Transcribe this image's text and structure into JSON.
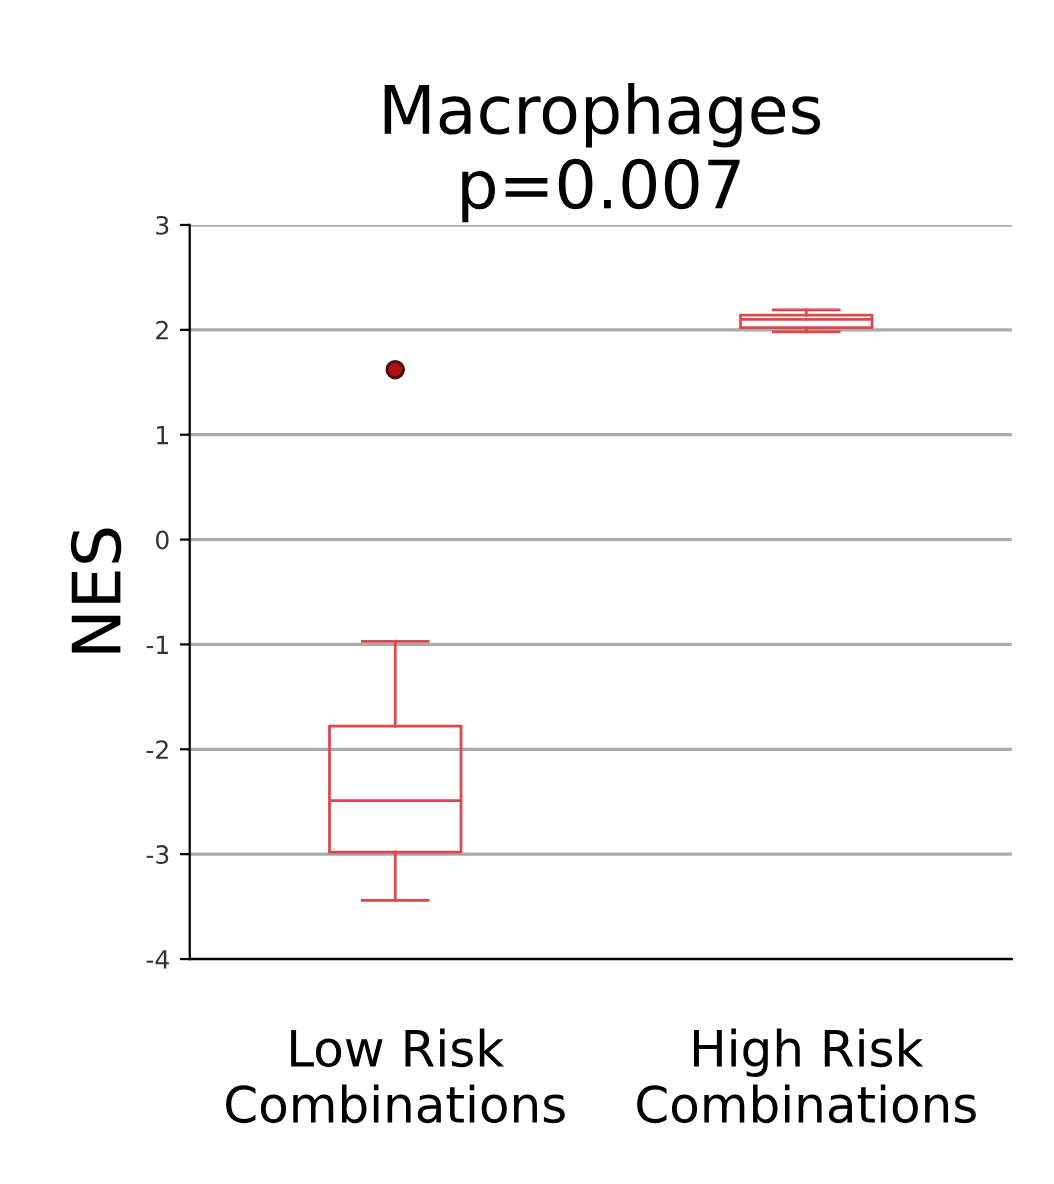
{
  "chart_data": {
    "type": "box",
    "title": "Macrophages\np=0.007",
    "ylabel": "NES",
    "categories": [
      "Low Risk\nCombinations",
      "High Risk\nCombinations"
    ],
    "series": [
      {
        "color": "#e0474c",
        "boxes": [
          {
            "low": -3.44,
            "q1": -2.98,
            "median": -2.49,
            "q3": -1.78,
            "high": -0.97,
            "outliers": [
              1.62
            ]
          },
          {
            "low": 1.98,
            "q1": 2.02,
            "median": 2.1,
            "q3": 2.14,
            "high": 2.19
          }
        ]
      }
    ],
    "ylim": [
      -4,
      3
    ],
    "yticks": [
      -4,
      -3,
      -2,
      -1,
      0,
      1,
      2,
      3
    ],
    "grid": "y"
  }
}
